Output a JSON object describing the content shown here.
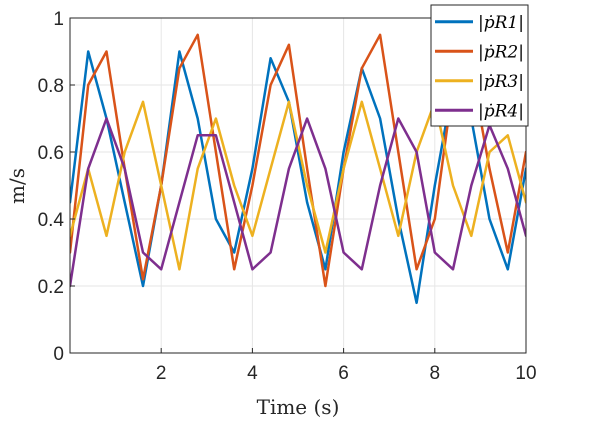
{
  "chart_data": {
    "type": "line",
    "title": "",
    "xlabel": "Time (s)",
    "ylabel": "m/s",
    "xlim": [
      0,
      10
    ],
    "ylim": [
      0,
      1
    ],
    "xticks": [
      2,
      4,
      6,
      8,
      10
    ],
    "yticks": [
      0,
      0.2,
      0.4,
      0.6,
      0.8,
      1
    ],
    "xtick_labels": [
      "2",
      "4",
      "6",
      "8",
      "10"
    ],
    "ytick_labels": [
      "0",
      "0.2",
      "0.4",
      "0.6",
      "0.8",
      "1"
    ],
    "grid": true,
    "legend_position": "top-right",
    "series": [
      {
        "name": "|ṗR1|",
        "color": "#0072BD",
        "x": [
          0.0,
          0.4,
          0.8,
          1.2,
          1.6,
          2.0,
          2.4,
          2.8,
          3.2,
          3.6,
          4.0,
          4.4,
          4.8,
          5.2,
          5.6,
          6.0,
          6.4,
          6.8,
          7.2,
          7.6,
          8.0,
          8.4,
          8.8,
          9.2,
          9.6,
          10.0
        ],
        "y": [
          0.45,
          0.9,
          0.7,
          0.45,
          0.2,
          0.5,
          0.9,
          0.7,
          0.4,
          0.3,
          0.55,
          0.88,
          0.75,
          0.45,
          0.25,
          0.6,
          0.85,
          0.7,
          0.4,
          0.15,
          0.5,
          0.8,
          0.7,
          0.4,
          0.25,
          0.55
        ]
      },
      {
        "name": "|ṗR2|",
        "color": "#D95319",
        "x": [
          0.0,
          0.4,
          0.8,
          1.2,
          1.6,
          2.0,
          2.4,
          2.8,
          3.2,
          3.6,
          4.0,
          4.4,
          4.8,
          5.2,
          5.6,
          6.0,
          6.4,
          6.8,
          7.2,
          7.6,
          8.0,
          8.4,
          8.8,
          9.2,
          9.6,
          10.0
        ],
        "y": [
          0.3,
          0.8,
          0.9,
          0.55,
          0.22,
          0.5,
          0.85,
          0.95,
          0.6,
          0.25,
          0.5,
          0.8,
          0.92,
          0.55,
          0.2,
          0.55,
          0.85,
          0.95,
          0.6,
          0.25,
          0.4,
          0.8,
          0.85,
          0.55,
          0.3,
          0.6
        ]
      },
      {
        "name": "|ṗR3|",
        "color": "#EDB120",
        "x": [
          0.0,
          0.4,
          0.8,
          1.2,
          1.6,
          2.0,
          2.4,
          2.8,
          3.2,
          3.6,
          4.0,
          4.4,
          4.8,
          5.2,
          5.6,
          6.0,
          6.4,
          6.8,
          7.2,
          7.6,
          8.0,
          8.4,
          8.8,
          9.2,
          9.6,
          10.0
        ],
        "y": [
          0.35,
          0.55,
          0.35,
          0.6,
          0.75,
          0.5,
          0.25,
          0.55,
          0.7,
          0.5,
          0.35,
          0.55,
          0.75,
          0.5,
          0.3,
          0.55,
          0.75,
          0.55,
          0.35,
          0.6,
          0.75,
          0.5,
          0.35,
          0.6,
          0.65,
          0.45
        ]
      },
      {
        "name": "|ṗR4|",
        "color": "#7E2F8E",
        "x": [
          0.0,
          0.4,
          0.8,
          1.2,
          1.6,
          2.0,
          2.4,
          2.8,
          3.2,
          3.6,
          4.0,
          4.4,
          4.8,
          5.2,
          5.6,
          6.0,
          6.4,
          6.8,
          7.2,
          7.6,
          8.0,
          8.4,
          8.8,
          9.2,
          9.6,
          10.0
        ],
        "y": [
          0.2,
          0.55,
          0.7,
          0.55,
          0.3,
          0.25,
          0.45,
          0.65,
          0.65,
          0.45,
          0.25,
          0.3,
          0.55,
          0.7,
          0.55,
          0.3,
          0.25,
          0.5,
          0.7,
          0.6,
          0.3,
          0.25,
          0.5,
          0.68,
          0.55,
          0.35
        ]
      }
    ]
  }
}
